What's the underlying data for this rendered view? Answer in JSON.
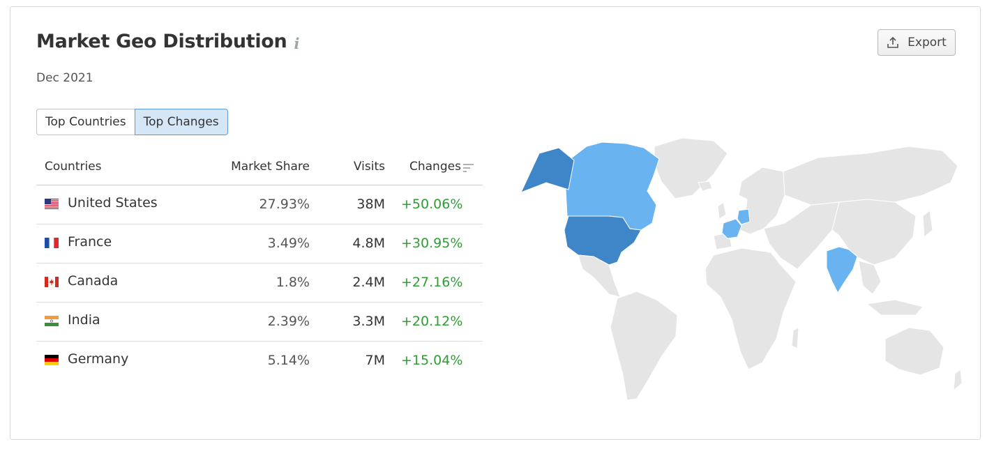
{
  "header": {
    "title": "Market Geo Distribution",
    "info_icon": "info-icon",
    "date": "Dec 2021",
    "export_label": "Export",
    "export_icon": "upload-icon"
  },
  "tabs": [
    {
      "label": "Top Countries",
      "active": false
    },
    {
      "label": "Top Changes",
      "active": true
    }
  ],
  "table": {
    "columns": [
      "Countries",
      "Market Share",
      "Visits",
      "Changes"
    ],
    "sort_icon": "sort-descending-icon",
    "rows": [
      {
        "country": "United States",
        "flag": "us-flag-icon",
        "market_share": "27.93%",
        "visits": "38M",
        "change": "+50.06%"
      },
      {
        "country": "France",
        "flag": "france-flag-icon",
        "market_share": "3.49%",
        "visits": "4.8M",
        "change": "+30.95%"
      },
      {
        "country": "Canada",
        "flag": "canada-flag-icon",
        "market_share": "1.8%",
        "visits": "2.4M",
        "change": "+27.16%"
      },
      {
        "country": "India",
        "flag": "india-flag-icon",
        "market_share": "2.39%",
        "visits": "3.3M",
        "change": "+20.12%"
      },
      {
        "country": "Germany",
        "flag": "germany-flag-icon",
        "market_share": "5.14%",
        "visits": "7M",
        "change": "+15.04%"
      }
    ]
  },
  "colors": {
    "change_positive": "#2e9d32",
    "map_high": "#3f86c8",
    "map_low": "#69b3f0",
    "map_none": "#e5e5e5",
    "active_tab": "#d5e6f6"
  },
  "map": {
    "highlighted": [
      {
        "country": "United States",
        "shade": "high"
      },
      {
        "country": "Canada",
        "shade": "low"
      },
      {
        "country": "France",
        "shade": "low"
      },
      {
        "country": "Germany",
        "shade": "low"
      },
      {
        "country": "India",
        "shade": "low"
      }
    ]
  }
}
